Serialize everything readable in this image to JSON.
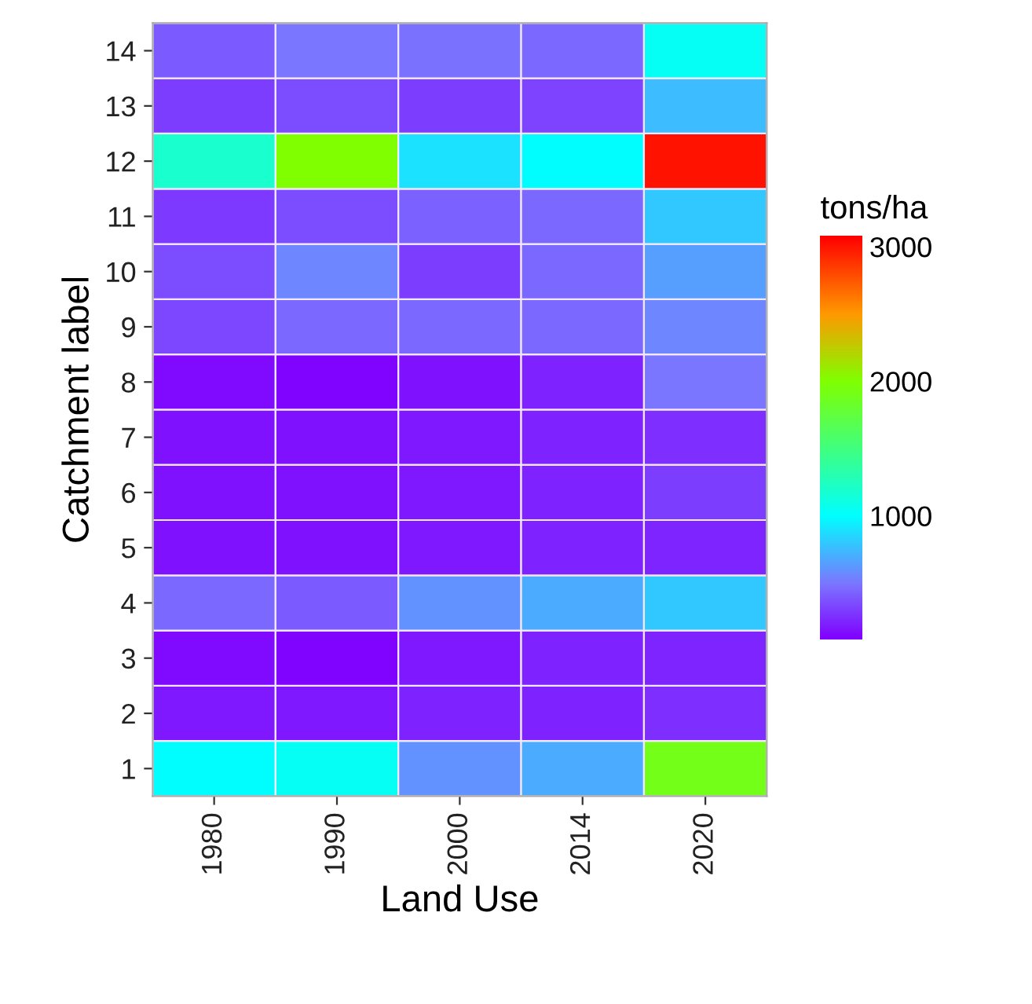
{
  "chart_data": {
    "type": "heatmap",
    "xlabel": "Land Use",
    "ylabel": "Catchment label",
    "clabel": "tons/ha",
    "categories": [
      "1980",
      "1990",
      "2000",
      "2014",
      "2020"
    ],
    "y_categories": [
      "14",
      "13",
      "12",
      "11",
      "10",
      "9",
      "8",
      "7",
      "6",
      "5",
      "4",
      "3",
      "2",
      "1"
    ],
    "cells": [
      [
        400,
        500,
        480,
        450,
        1050
      ],
      [
        300,
        350,
        300,
        320,
        750
      ],
      [
        1200,
        2000,
        900,
        1000,
        3000
      ],
      [
        280,
        350,
        420,
        450,
        800
      ],
      [
        350,
        550,
        300,
        450,
        650
      ],
      [
        330,
        450,
        450,
        450,
        550
      ],
      [
        120,
        100,
        150,
        200,
        500
      ],
      [
        150,
        150,
        170,
        200,
        250
      ],
      [
        150,
        150,
        170,
        200,
        300
      ],
      [
        150,
        150,
        170,
        200,
        220
      ],
      [
        450,
        400,
        600,
        700,
        800
      ],
      [
        120,
        100,
        170,
        200,
        220
      ],
      [
        170,
        170,
        200,
        200,
        250
      ],
      [
        1000,
        1050,
        600,
        700,
        1900
      ]
    ],
    "clim": [
      80,
      3080
    ],
    "cticks": [
      1000,
      2000,
      3000
    ]
  }
}
